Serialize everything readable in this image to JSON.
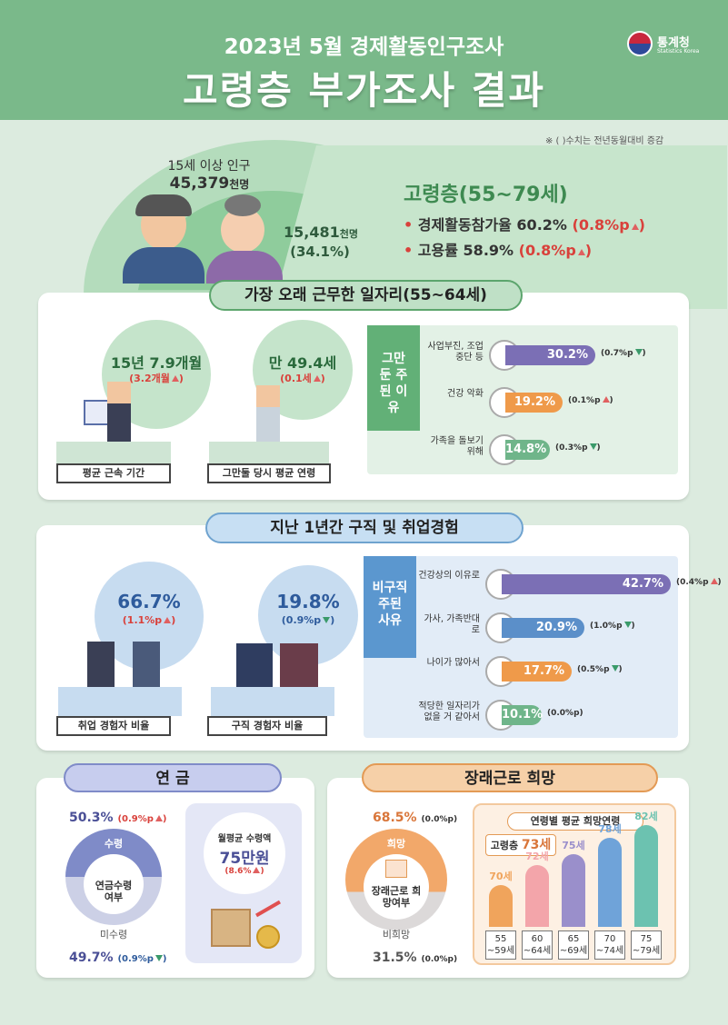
{
  "header": {
    "subtitle": "2023년 5월 경제활동인구조사",
    "title": "고령층 부가조사 결과",
    "logo_kr": "통계청",
    "logo_en": "Statistics Korea"
  },
  "note": "※ ( )수치는 전년동월대비 증감",
  "population": {
    "label": "15세 이상 인구",
    "value": "45,379",
    "unit": "천명",
    "elderly_value": "15,481",
    "elderly_unit": "천명",
    "elderly_pct": "(34.1%)"
  },
  "elderly": {
    "title": "고령층(55~79세)",
    "lines": [
      {
        "label": "경제활동참가율",
        "value": "60.2%",
        "change": "(0.8%p"
      },
      {
        "label": "고용률",
        "value": "58.9%",
        "change": "(0.8%p"
      }
    ]
  },
  "job": {
    "title": "가장 오래 근무한 일자리(55~64세)",
    "tenure": {
      "main": "15년 7.9개월",
      "change": "(3.2개월",
      "label": "평균 근속 기간"
    },
    "age": {
      "main": "만 49.4세",
      "change": "(0.1세",
      "label": "그만둘 당시 평균 연령"
    },
    "reason_title": "그만 둔 주된 이유",
    "reasons": [
      {
        "label": "사업부진, 조업중단 등",
        "value": "30.2%",
        "change": "(0.7%p",
        "dir": "down",
        "color": "#7b6fb5"
      },
      {
        "label": "건강 악화",
        "value": "19.2%",
        "change": "(0.1%p",
        "dir": "up",
        "color": "#ef9a4a"
      },
      {
        "label": "가족을 돌보기 위해",
        "value": "14.8%",
        "change": "(0.3%p",
        "dir": "down",
        "color": "#6fb58a"
      }
    ]
  },
  "search": {
    "title": "지난 1년간 구직 및 취업경험",
    "emp": {
      "main": "66.7%",
      "change": "(1.1%p",
      "label": "취업 경험자 비율"
    },
    "seek": {
      "main": "19.8%",
      "change": "(0.9%p",
      "label": "구직 경험자 비율"
    },
    "reason_title": "비구직 주된 사유",
    "reasons": [
      {
        "label": "건강상의 이유로",
        "value": "42.7%",
        "change": "(0.4%p",
        "dir": "up",
        "color": "#7b6fb5"
      },
      {
        "label": "가사, 가족반대로",
        "value": "20.9%",
        "change": "(1.0%p",
        "dir": "down",
        "color": "#5b8fc9"
      },
      {
        "label": "나이가 많아서",
        "value": "17.7%",
        "change": "(0.5%p",
        "dir": "down",
        "color": "#ef9a4a"
      },
      {
        "label": "적당한 일자리가 없을 거 같아서",
        "value": "10.1%",
        "change": "(0.0%p)",
        "dir": "none",
        "color": "#6fb58a"
      }
    ]
  },
  "pension": {
    "title": "연 금",
    "top_val": "50.3%",
    "top_change": "(0.9%p",
    "top_label": "수령",
    "center": "연금수령 여부",
    "bottom_label": "미수령",
    "bottom_val": "49.7%",
    "bottom_change": "(0.9%p",
    "month_label": "월평균 수령액",
    "month_val": "75만원",
    "month_change": "(8.6%"
  },
  "hope": {
    "title": "장래근로 희망",
    "top_val": "68.5%",
    "top_change": "(0.0%p)",
    "top_label": "희망",
    "center": "장래근로 희망여부",
    "bottom_label": "비희망",
    "bottom_val": "31.5%",
    "bottom_change": "(0.0%p)",
    "age_title": "연령별 평균 희망연령",
    "avg_label": "고령층",
    "avg_val": "73세",
    "ages": [
      {
        "val": "70세",
        "group": "55 ~59세",
        "color": "#f0a45c",
        "h": 46
      },
      {
        "val": "72세",
        "group": "60 ~64세",
        "color": "#f3a5aa",
        "h": 68
      },
      {
        "val": "75세",
        "group": "65 ~69세",
        "color": "#9a8fcb",
        "h": 80
      },
      {
        "val": "78세",
        "group": "70 ~74세",
        "color": "#6fa3d9",
        "h": 98
      },
      {
        "val": "82세",
        "group": "75 ~79세",
        "color": "#6cc2b0",
        "h": 112
      }
    ]
  }
}
